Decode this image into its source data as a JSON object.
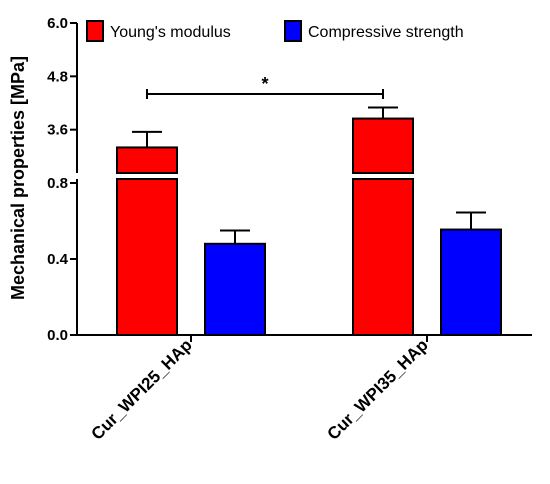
{
  "chart_data": {
    "type": "bar",
    "title": "",
    "xlabel": "",
    "ylabel": "Mechanical properties [MPa]",
    "categories": [
      "Cur_WPI25_HAp",
      "Cur_WPI35_HAp"
    ],
    "series": [
      {
        "name": "Young's modulus",
        "color": "#ff0000",
        "values": [
          3.2,
          3.85
        ],
        "errors": [
          0.35,
          0.25
        ]
      },
      {
        "name": "Compressive strength",
        "color": "#0000ff",
        "values": [
          0.48,
          0.555
        ],
        "errors": [
          0.07,
          0.09
        ]
      }
    ],
    "y_axis": {
      "broken": true,
      "lower_segment": {
        "range": [
          0.0,
          0.8
        ],
        "ticks": [
          "0.0",
          "0.4",
          "0.8"
        ]
      },
      "upper_segment": {
        "range": [
          2.4,
          6.0
        ],
        "ticks": [
          "3.6",
          "4.8",
          "6.0"
        ]
      }
    },
    "significance": {
      "between": [
        "Cur_WPI25_HAp",
        "Cur_WPI35_HAp"
      ],
      "series": "Young's modulus",
      "label": "*"
    },
    "legend": {
      "placement": "top-center"
    },
    "grid": false
  }
}
